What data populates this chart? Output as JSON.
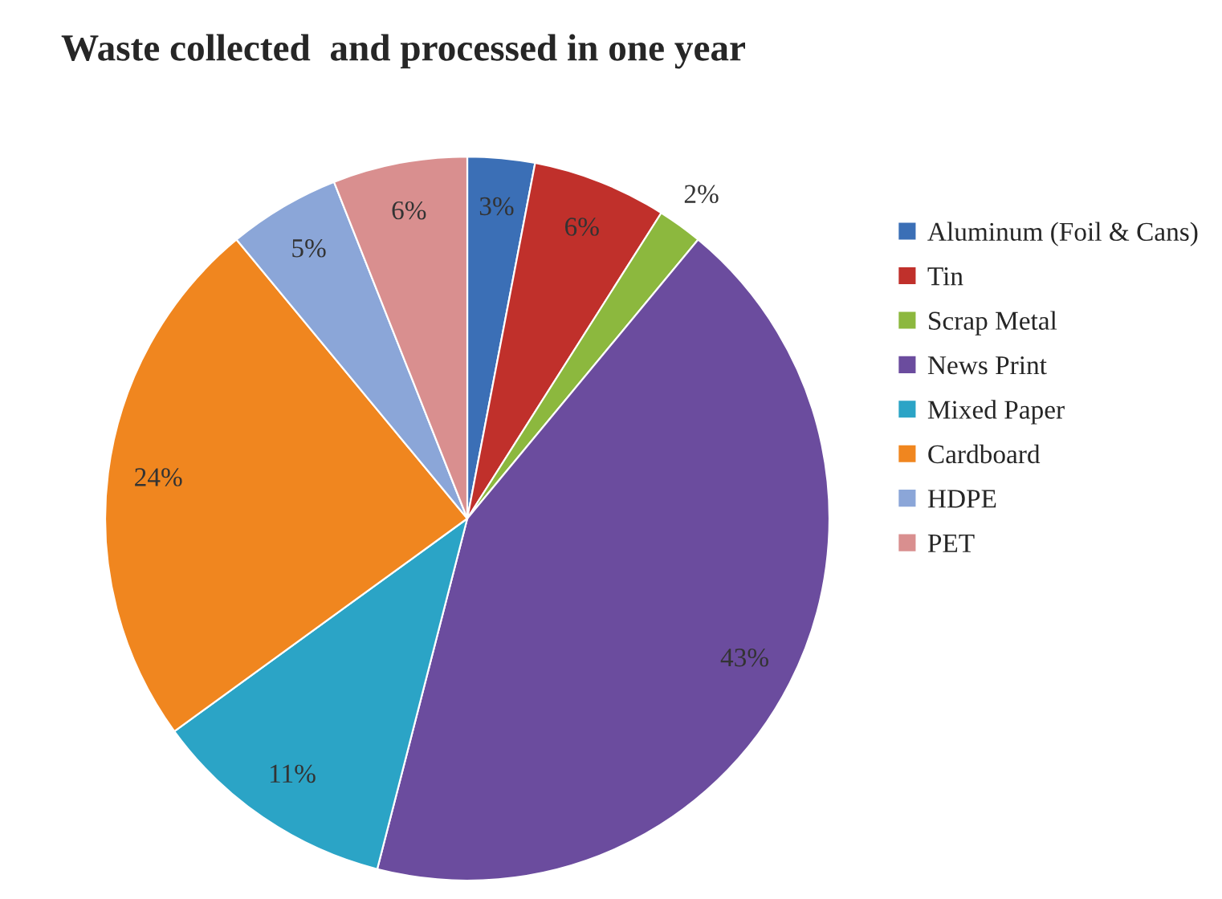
{
  "chart_data": {
    "type": "pie",
    "title": "Waste collected  and processed in one year",
    "categories": [
      "Aluminum (Foil & Cans)",
      "Tin",
      "Scrap Metal",
      "News Print",
      "Mixed Paper",
      "Cardboard",
      "HDPE",
      "PET"
    ],
    "values": [
      3,
      6,
      2,
      43,
      11,
      24,
      5,
      6
    ],
    "value_labels": [
      "3%",
      "6%",
      "2%",
      "43%",
      "11%",
      "24%",
      "5%",
      "6%"
    ],
    "colors": [
      "#3b6fb6",
      "#c0302b",
      "#8cb83e",
      "#6b4c9e",
      "#2ba4c6",
      "#f0861f",
      "#8ba6d8",
      "#d98f8f"
    ],
    "legend": "right"
  }
}
